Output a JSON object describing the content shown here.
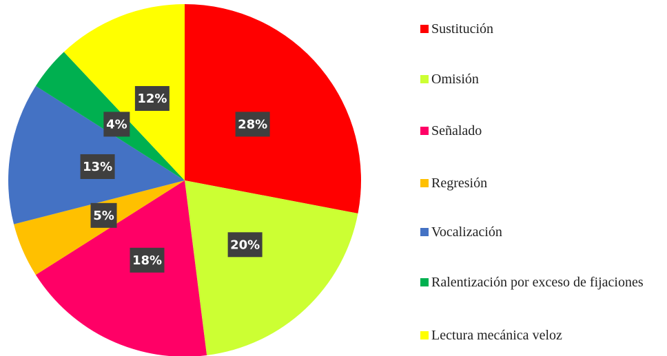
{
  "chart_data": {
    "type": "pie",
    "categories": [
      "Sustitución",
      "Omisión",
      "Señalado",
      "Regresión",
      "Vocalización",
      "Ralentización por exceso de fijaciones",
      "Lectura mecánica veloz"
    ],
    "values": [
      28,
      20,
      18,
      5,
      13,
      4,
      12
    ],
    "value_labels": [
      "28%",
      "20%",
      "18%",
      "5%",
      "13%",
      "4%",
      "12%"
    ],
    "colors": [
      "#ff0000",
      "#ccff33",
      "#ff0066",
      "#ffc000",
      "#4472c4",
      "#00b050",
      "#ffff00"
    ],
    "legend": "right"
  }
}
